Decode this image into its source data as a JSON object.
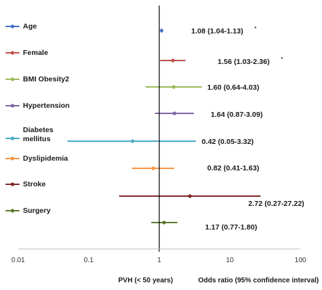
{
  "chart_data": {
    "type": "forest",
    "xscale": "log",
    "xlim": [
      0.01,
      100
    ],
    "xticks": [
      "0.01",
      "0.1",
      "1",
      "10",
      "100"
    ],
    "reference_line": 1,
    "xlabel": "PVH (< 50 years)",
    "xlabel2": "Odds ratio (95% confidence interval)",
    "series": [
      {
        "name": "Age",
        "or": 1.08,
        "lo": 1.04,
        "hi": 1.13,
        "text": "1.08 (1.04-1.13)",
        "sig": "*",
        "color": "#4472C4"
      },
      {
        "name": "Female",
        "or": 1.56,
        "lo": 1.03,
        "hi": 2.36,
        "text": "1.56 (1.03-2.36)",
        "sig": "*",
        "color": "#C0504D"
      },
      {
        "name": "BMI Obesity2",
        "or": 1.6,
        "lo": 0.64,
        "hi": 4.03,
        "text": "1.60 (0.64-4.03)",
        "sig": "",
        "color": "#9BBB59"
      },
      {
        "name": "Hypertension",
        "or": 1.64,
        "lo": 0.87,
        "hi": 3.09,
        "text": "1.64 (0.87-3.09)",
        "sig": "",
        "color": "#8064A2"
      },
      {
        "name": "Diabetes mellitus",
        "line1": "Diabetes",
        "line2": "mellitus",
        "or": 0.42,
        "lo": 0.05,
        "hi": 3.32,
        "text": "0.42 (0.05-3.32)",
        "sig": "",
        "color": "#4BACC6"
      },
      {
        "name": "Dyslipidemia",
        "or": 0.82,
        "lo": 0.41,
        "hi": 1.63,
        "text": "0.82 (0.41-1.63)",
        "sig": "",
        "color": "#F79646"
      },
      {
        "name": "Stroke",
        "or": 2.72,
        "lo": 0.27,
        "hi": 27.22,
        "text": "2.72 (0.27-27.22)",
        "sig": "",
        "color": "#7F2B2B"
      },
      {
        "name": "Surgery",
        "or": 1.17,
        "lo": 0.77,
        "hi": 1.8,
        "text": "1.17 (0.77-1.80)",
        "sig": "",
        "color": "#5B7A2E"
      }
    ]
  }
}
